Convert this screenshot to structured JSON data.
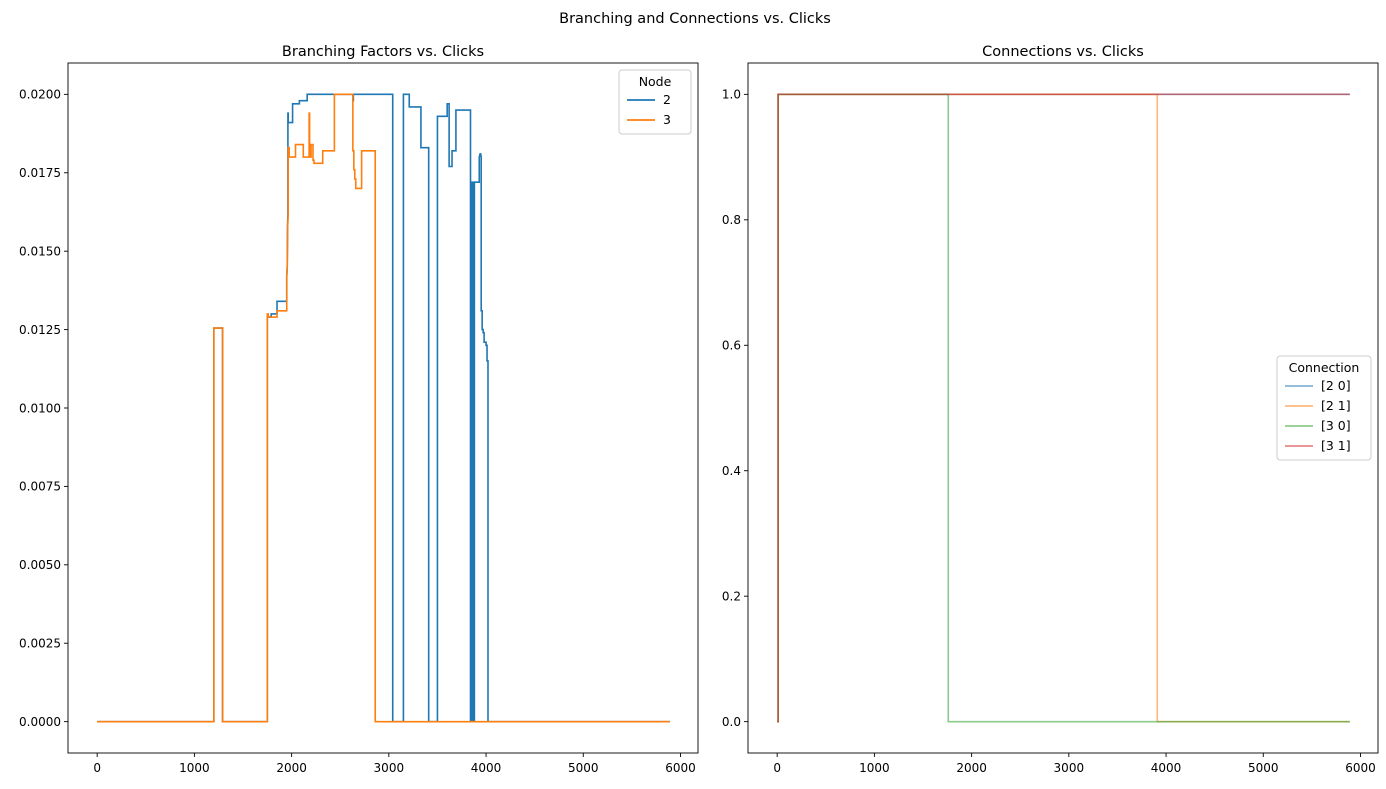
{
  "suptitle": "Branching and Connections vs. Clicks",
  "chart_data": [
    {
      "type": "line",
      "title": "Branching Factors vs. Clicks",
      "xlabel": "",
      "ylabel": "",
      "xlim": [
        -300,
        6180
      ],
      "ylim": [
        -0.001,
        0.021
      ],
      "xticks": [
        0,
        1000,
        2000,
        3000,
        4000,
        5000,
        6000
      ],
      "yticks": [
        0.0,
        0.0025,
        0.005,
        0.0075,
        0.01,
        0.0125,
        0.015,
        0.0175,
        0.02
      ],
      "ytick_labels": [
        "0.0000",
        "0.0025",
        "0.0050",
        "0.0075",
        "0.0100",
        "0.0125",
        "0.0150",
        "0.0175",
        "0.0200"
      ],
      "grid": false,
      "legend": {
        "title": "Node",
        "placement": "top-right"
      },
      "series": [
        {
          "name": "2",
          "color": "#1f77b4",
          "x": [
            0,
            1200,
            1200,
            1290,
            1290,
            1750,
            1750,
            1790,
            1790,
            1850,
            1850,
            1950,
            1950,
            1955,
            1958,
            1962,
            1962,
            1965,
            1965,
            2010,
            2010,
            2080,
            2080,
            2160,
            2160,
            2630,
            2630,
            2635,
            2635,
            3040,
            3040,
            3150,
            3150,
            3210,
            3210,
            3270,
            3270,
            3330,
            3330,
            3410,
            3410,
            3430,
            3430,
            3500,
            3500,
            3570,
            3570,
            3600,
            3600,
            3620,
            3620,
            3650,
            3650,
            3690,
            3690,
            3740,
            3740,
            3840,
            3840,
            3850,
            3850,
            3855,
            3855,
            3860,
            3860,
            3870,
            3870,
            3880,
            3880,
            3900,
            3900,
            3930,
            3930,
            3938,
            3945,
            3950,
            3950,
            3960,
            3960,
            3970,
            3970,
            3980,
            3980,
            4000,
            4000,
            4010,
            4010,
            4020,
            4020,
            4030,
            4030,
            5890
          ],
          "y": [
            0,
            0,
            0.01255,
            0.01255,
            0,
            0,
            0.0129,
            0.0129,
            0.013,
            0.013,
            0.0134,
            0.0134,
            0.0142,
            0.0145,
            0.0158,
            0.0162,
            0.0194,
            0.0194,
            0.0191,
            0.0191,
            0.0197,
            0.0197,
            0.0198,
            0.0198,
            0.02,
            0.02,
            0.0198,
            0.0198,
            0.02,
            0.02,
            0,
            0,
            0.02,
            0.02,
            0.0196,
            0.0196,
            0.0196,
            0.0196,
            0.0183,
            0.0183,
            0,
            0,
            0,
            0,
            0.0193,
            0.0193,
            0.0193,
            0.0193,
            0.0197,
            0.0197,
            0.0177,
            0.0177,
            0.0182,
            0.0182,
            0.0195,
            0.0195,
            0.0195,
            0.0195,
            0,
            0,
            0.0172,
            0.0172,
            0,
            0,
            0.0172,
            0.0172,
            0,
            0,
            0.0172,
            0.0172,
            0.0172,
            0.0172,
            0.018,
            0.0181,
            0.0181,
            0.018,
            0.0131,
            0.0131,
            0.0125,
            0.0125,
            0.0124,
            0.0124,
            0.0121,
            0.0121,
            0.012,
            0.012,
            0.0115,
            0.0115,
            0,
            0,
            0,
            0
          ]
        },
        {
          "name": "3",
          "color": "#ff7f0e",
          "x": [
            0,
            1200,
            1200,
            1290,
            1290,
            1750,
            1750,
            1760,
            1760,
            1850,
            1850,
            1950,
            1950,
            1955,
            1960,
            1965,
            1965,
            1975,
            1975,
            2040,
            2040,
            2120,
            2120,
            2180,
            2180,
            2185,
            2185,
            2200,
            2200,
            2220,
            2220,
            2230,
            2230,
            2320,
            2320,
            2440,
            2440,
            2630,
            2630,
            2640,
            2640,
            2650,
            2650,
            2660,
            2660,
            2720,
            2720,
            2780,
            2780,
            2860,
            2860,
            5890
          ],
          "y": [
            0,
            0,
            0.01255,
            0.01255,
            0,
            0,
            0.013,
            0.013,
            0.0129,
            0.0129,
            0.0131,
            0.0131,
            0.0142,
            0.0145,
            0.0158,
            0.0162,
            0.0183,
            0.0183,
            0.018,
            0.018,
            0.0184,
            0.0184,
            0.018,
            0.018,
            0.0194,
            0.0194,
            0.018,
            0.018,
            0.0184,
            0.0184,
            0.0179,
            0.0179,
            0.0178,
            0.0178,
            0.0182,
            0.0182,
            0.02,
            0.02,
            0.0182,
            0.0182,
            0.0176,
            0.0176,
            0.0173,
            0.0173,
            0.017,
            0.017,
            0.0182,
            0.0182,
            0.0182,
            0.0182,
            0,
            0
          ]
        }
      ]
    },
    {
      "type": "line",
      "title": "Connections vs. Clicks",
      "xlabel": "",
      "ylabel": "",
      "xlim": [
        -300,
        6180
      ],
      "ylim": [
        -0.05,
        1.05
      ],
      "xticks": [
        0,
        1000,
        2000,
        3000,
        4000,
        5000,
        6000
      ],
      "yticks": [
        0.0,
        0.2,
        0.4,
        0.6,
        0.8,
        1.0
      ],
      "ytick_labels": [
        "0.0",
        "0.2",
        "0.4",
        "0.6",
        "0.8",
        "1.0"
      ],
      "grid": false,
      "legend": {
        "title": "Connection",
        "placement": "center-right"
      },
      "series": [
        {
          "name": "[2 0]",
          "color": "#1f77b4",
          "opacity": 0.55,
          "x": [
            0,
            10,
            10,
            5890
          ],
          "y": [
            0,
            0,
            1,
            1
          ]
        },
        {
          "name": "[2 1]",
          "color": "#ff7f0e",
          "opacity": 0.55,
          "x": [
            0,
            10,
            10,
            3910,
            3910,
            5890
          ],
          "y": [
            0,
            0,
            1,
            1,
            0,
            0
          ]
        },
        {
          "name": "[3 0]",
          "color": "#2ca02c",
          "opacity": 0.55,
          "x": [
            0,
            10,
            10,
            1760,
            1760,
            5890
          ],
          "y": [
            0,
            0,
            1,
            1,
            0,
            0
          ]
        },
        {
          "name": "[3 1]",
          "color": "#d62728",
          "opacity": 0.55,
          "x": [
            0,
            10,
            10,
            5890
          ],
          "y": [
            0,
            0,
            1,
            1
          ]
        }
      ]
    }
  ]
}
